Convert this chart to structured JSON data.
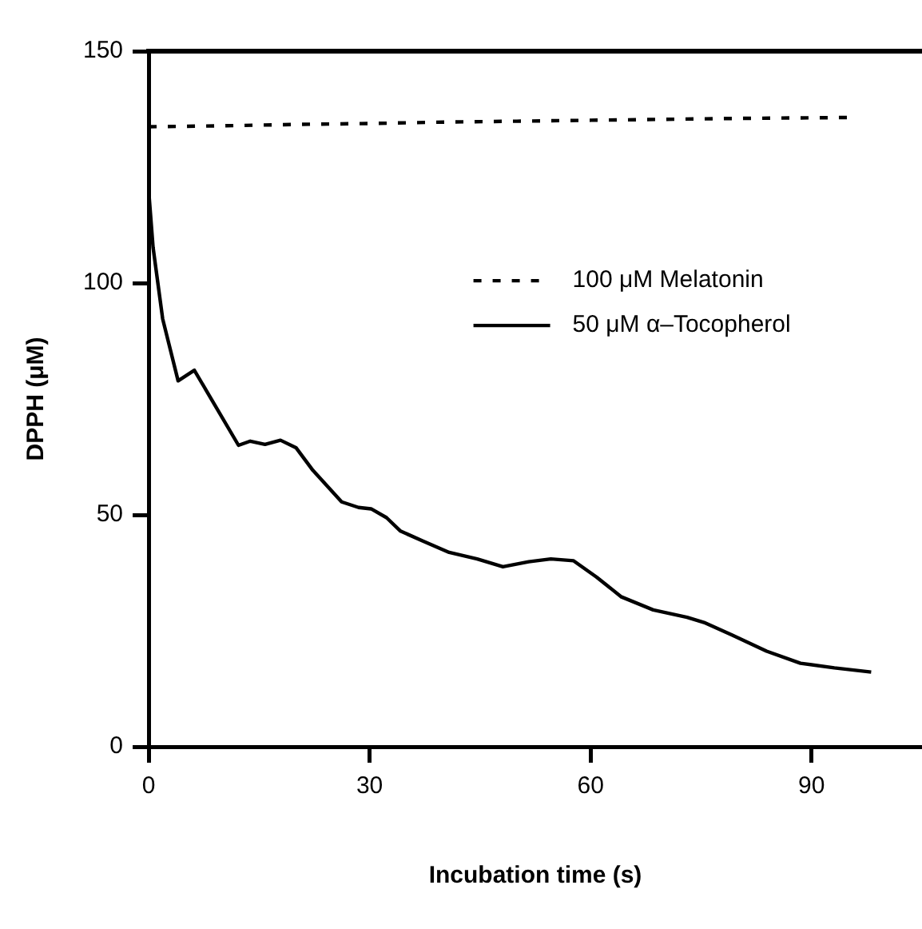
{
  "chart_data": {
    "type": "line",
    "xlabel": "Incubation time (s)",
    "ylabel": "DPPH (μM)",
    "xlim": [
      0,
      105
    ],
    "xticks": [
      0,
      30,
      60,
      90
    ],
    "ylim": [
      0,
      150
    ],
    "yticks": [
      0,
      50,
      100,
      150
    ],
    "grid": false,
    "legend": "right",
    "marker": "none",
    "series": [
      {
        "name": "100 μM Melatonin",
        "color": "#000000",
        "line_style": "dashed",
        "x": [
          0,
          10,
          20,
          30,
          40,
          50,
          60,
          70,
          80,
          95.4
        ],
        "values": [
          133.7,
          133.9,
          134.2,
          134.4,
          134.7,
          134.9,
          135.1,
          135.3,
          135.5,
          135.7
        ]
      },
      {
        "name": "50 μM α–Tocopherol",
        "color": "#000000",
        "line_style": "solid",
        "x": [
          0,
          0,
          0.6,
          1.9,
          4.0,
          6.2,
          12.2,
          13.8,
          15.8,
          17.9,
          20.0,
          22.3,
          26.2,
          28.5,
          30.2,
          32.3,
          34.2,
          37.3,
          40.8,
          44.6,
          48.1,
          51.6,
          54.6,
          57.7,
          60.8,
          64.2,
          68.5,
          73.1,
          75.4,
          79.2,
          83.9,
          88.5,
          93.1,
          98.1
        ],
        "values": [
          150,
          120,
          107.7,
          92.3,
          78.9,
          81.2,
          65.0,
          65.9,
          65.2,
          66.1,
          64.5,
          59.6,
          52.8,
          51.6,
          51.3,
          49.4,
          46.5,
          44.3,
          41.9,
          40.5,
          38.8,
          39.9,
          40.5,
          40.1,
          36.6,
          32.3,
          29.5,
          27.9,
          26.8,
          24.1,
          20.6,
          18.0,
          17.0,
          16.1
        ]
      }
    ]
  }
}
